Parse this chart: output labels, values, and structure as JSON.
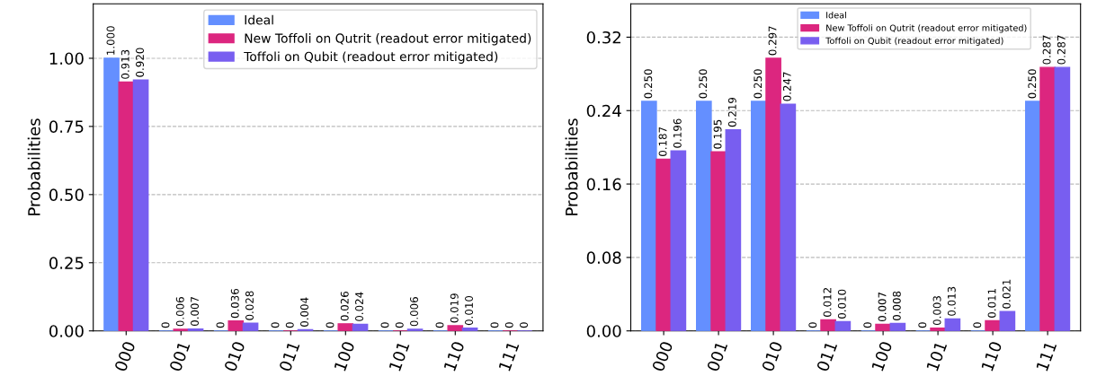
{
  "chart_data": [
    {
      "type": "bar",
      "ylabel": "Probabilities",
      "categories": [
        "000",
        "001",
        "010",
        "011",
        "100",
        "101",
        "110",
        "111"
      ],
      "ylim": [
        0,
        1.2
      ],
      "yticks": [
        {
          "value": 0,
          "label": "0.00"
        },
        {
          "value": 0.25,
          "label": "0.25"
        },
        {
          "value": 0.5,
          "label": "0.50"
        },
        {
          "value": 0.75,
          "label": "0.75"
        },
        {
          "value": 1.0,
          "label": "1.00"
        }
      ],
      "grid": "y",
      "legend": "top right",
      "series": [
        {
          "name": "Ideal",
          "color": "#648fff",
          "values": [
            1.0,
            0,
            0,
            0,
            0,
            0,
            0,
            0
          ],
          "value_labels": [
            "1.000",
            "0",
            "0",
            "0",
            "0",
            "0",
            "0",
            "0"
          ]
        },
        {
          "name": "New Toffoli on Qutrit (readout error mitigated)",
          "color": "#dc267f",
          "values": [
            0.913,
            0.006,
            0.036,
            0,
            0.026,
            0,
            0.019,
            0
          ],
          "value_labels": [
            "0.913",
            "0.006",
            "0.036",
            "0",
            "0.026",
            "0",
            "0.019",
            "0"
          ]
        },
        {
          "name": "Toffoli on Qubit (readout error mitigated)",
          "color": "#785ef0",
          "values": [
            0.92,
            0.007,
            0.028,
            0.004,
            0.024,
            0.006,
            0.01,
            0
          ],
          "value_labels": [
            "0.920",
            "0.007",
            "0.028",
            "0.004",
            "0.024",
            "0.006",
            "0.010",
            "0"
          ]
        }
      ]
    },
    {
      "type": "bar",
      "ylabel": "Probabilities",
      "categories": [
        "000",
        "001",
        "010",
        "011",
        "100",
        "101",
        "110",
        "111"
      ],
      "ylim": [
        0,
        0.3564
      ],
      "yticks": [
        {
          "value": 0,
          "label": "0.00"
        },
        {
          "value": 0.08,
          "label": "0.08"
        },
        {
          "value": 0.16,
          "label": "0.16"
        },
        {
          "value": 0.24,
          "label": "0.24"
        },
        {
          "value": 0.32,
          "label": "0.32"
        }
      ],
      "grid": "y",
      "legend": "top center",
      "series": [
        {
          "name": "Ideal",
          "color": "#648fff",
          "values": [
            0.25,
            0.25,
            0.25,
            0,
            0,
            0,
            0,
            0.25
          ],
          "value_labels": [
            "0.250",
            "0.250",
            "0.250",
            "0",
            "0",
            "0",
            "0",
            "0.250"
          ]
        },
        {
          "name": "New Toffoli on Qutrit (readout error mitigated)",
          "color": "#dc267f",
          "values": [
            0.187,
            0.195,
            0.297,
            0.012,
            0.007,
            0.003,
            0.011,
            0.287
          ],
          "value_labels": [
            "0.187",
            "0.195",
            "0.297",
            "0.012",
            "0.007",
            "0.003",
            "0.011",
            "0.287"
          ]
        },
        {
          "name": "Toffoli on Qubit (readout error mitigated)",
          "color": "#785ef0",
          "values": [
            0.196,
            0.219,
            0.247,
            0.01,
            0.008,
            0.013,
            0.021,
            0.287
          ],
          "value_labels": [
            "0.196",
            "0.219",
            "0.247",
            "0.010",
            "0.008",
            "0.013",
            "0.021",
            "0.287"
          ]
        }
      ]
    }
  ]
}
